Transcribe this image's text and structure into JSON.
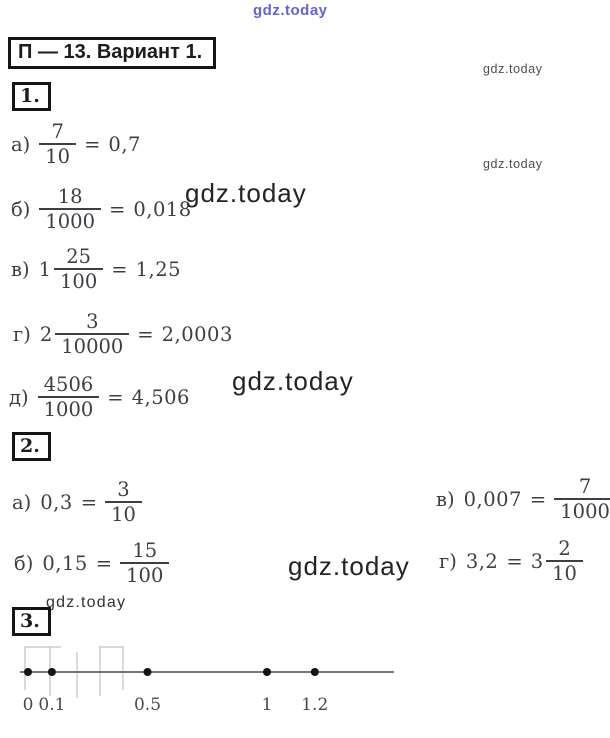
{
  "watermark": {
    "text": "gdz.today"
  },
  "header": {
    "title": "П — 13. Вариант 1."
  },
  "tasks": {
    "t1": {
      "number": "1.",
      "items": [
        {
          "label": "а)",
          "whole": "",
          "num": "7",
          "den": "10",
          "eq": "=",
          "value": "0,7"
        },
        {
          "label": "б)",
          "whole": "",
          "num": "18",
          "den": "1000",
          "eq": "=",
          "value": "0,018"
        },
        {
          "label": "в)",
          "whole": "1",
          "num": "25",
          "den": "100",
          "eq": "=",
          "value": "1,25"
        },
        {
          "label": "г)",
          "whole": "2",
          "num": "3",
          "den": "10000",
          "eq": "=",
          "value": "2,0003"
        },
        {
          "label": "д)",
          "whole": "",
          "num": "4506",
          "den": "1000",
          "eq": "=",
          "value": "4,506"
        }
      ]
    },
    "t2": {
      "number": "2.",
      "items": [
        {
          "label": "а)",
          "decimal": "0,3",
          "eq": "=",
          "whole": "",
          "num": "3",
          "den": "10"
        },
        {
          "label": "б)",
          "decimal": "0,15",
          "eq": "=",
          "whole": "",
          "num": "15",
          "den": "100"
        },
        {
          "label": "в)",
          "decimal": "0,007",
          "eq": "=",
          "whole": "",
          "num": "7",
          "den": "1000"
        },
        {
          "label": "г)",
          "decimal": "3,2",
          "eq": "=",
          "whole": "3",
          "num": "2",
          "den": "10"
        }
      ]
    },
    "t3": {
      "number": "3."
    }
  },
  "number_line": {
    "points": [
      0,
      0.1,
      0.5,
      1,
      1.2
    ],
    "labels": [
      "0",
      "0.1",
      "0.5",
      "1",
      "1.2"
    ]
  }
}
